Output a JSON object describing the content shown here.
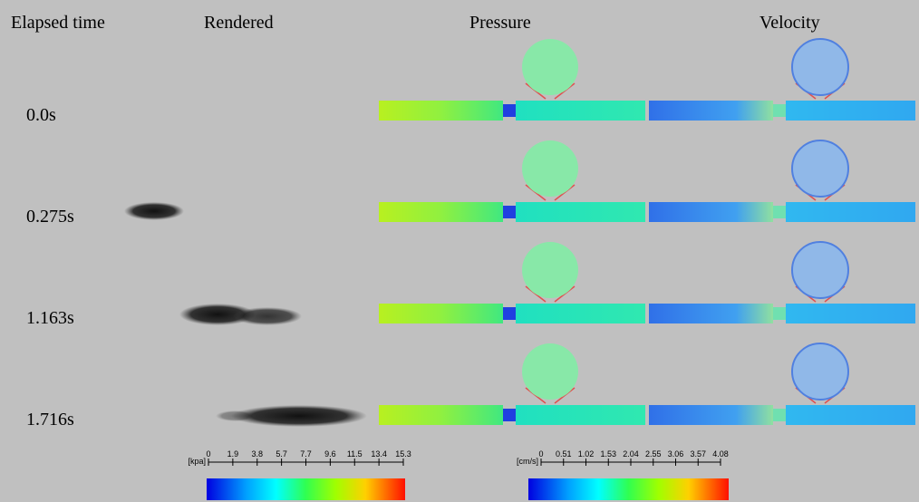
{
  "headers": [
    "Elapsed time",
    "Rendered",
    "Pressure",
    "Velocity"
  ],
  "rows": [
    {
      "time": "0.0s"
    },
    {
      "time": "0.275s"
    },
    {
      "time": "1.163s"
    },
    {
      "time": "1.716s"
    }
  ],
  "colorbars": [
    {
      "unit": "[kpa]",
      "ticks": [
        "0",
        "1.9",
        "3.8",
        "5.7",
        "7.7",
        "9.6",
        "11.5",
        "13.4",
        "15.3"
      ]
    },
    {
      "unit": "[cm/s]",
      "ticks": [
        "0",
        "0.51",
        "1.02",
        "1.53",
        "2.04",
        "2.55",
        "3.06",
        "3.57",
        "4.08"
      ]
    }
  ]
}
